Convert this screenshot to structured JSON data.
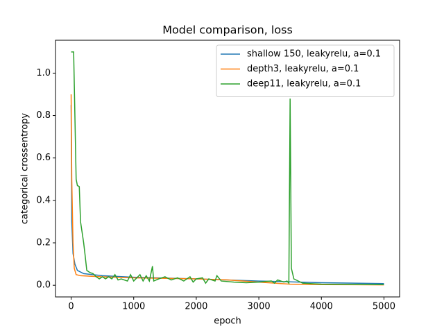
{
  "chart_data": {
    "type": "line",
    "title": "Model comparison, loss",
    "xlabel": "epoch",
    "ylabel": "categorical crossentropy",
    "xlim": [
      -250,
      5250
    ],
    "xticks": [
      0,
      1000,
      2000,
      3000,
      4000,
      5000
    ],
    "ylim": [
      -0.055,
      1.155
    ],
    "yticks": [
      {
        "value": 0,
        "label": "0.0"
      },
      {
        "value": 0.2,
        "label": "0.2"
      },
      {
        "value": 0.4,
        "label": "0.4"
      },
      {
        "value": 0.6,
        "label": "0.6"
      },
      {
        "value": 0.8,
        "label": "0.8"
      },
      {
        "value": 1.0,
        "label": "1.0"
      }
    ],
    "legend": "upper right",
    "grid": false,
    "series": [
      {
        "name": "shallow 150, leakyrelu, a=0.1",
        "color": "#1f77b4",
        "x": [
          0,
          10,
          30,
          60,
          100,
          200,
          500,
          1000,
          2000,
          3000,
          4000,
          5000
        ],
        "values": [
          0.85,
          0.3,
          0.15,
          0.1,
          0.07,
          0.055,
          0.045,
          0.038,
          0.03,
          0.02,
          0.012,
          0.008
        ]
      },
      {
        "name": "depth3, leakyrelu, a=0.1",
        "color": "#ff7f0e",
        "x": [
          0,
          10,
          30,
          50,
          80,
          150,
          500,
          1000,
          2000,
          2500,
          3000,
          3500,
          4000,
          5000
        ],
        "values": [
          0.9,
          0.5,
          0.2,
          0.08,
          0.05,
          0.045,
          0.04,
          0.035,
          0.03,
          0.025,
          0.015,
          0.005,
          0.003,
          0.002
        ]
      },
      {
        "name": "deep11, leakyrelu, a=0.1",
        "color": "#2ca02c",
        "x": [
          0,
          40,
          60,
          80,
          100,
          130,
          150,
          200,
          220,
          250,
          300,
          350,
          400,
          450,
          500,
          550,
          600,
          650,
          700,
          750,
          800,
          900,
          950,
          1000,
          1100,
          1150,
          1200,
          1250,
          1300,
          1320,
          1400,
          1500,
          1600,
          1700,
          1800,
          1900,
          1950,
          2000,
          2100,
          2150,
          2200,
          2300,
          2330,
          2400,
          2600,
          2800,
          3000,
          3200,
          3250,
          3300,
          3400,
          3450,
          3480,
          3500,
          3520,
          3560,
          3700,
          4000,
          5000
        ],
        "values": [
          1.1,
          1.1,
          0.8,
          0.5,
          0.47,
          0.465,
          0.3,
          0.2,
          0.15,
          0.07,
          0.06,
          0.055,
          0.04,
          0.03,
          0.04,
          0.03,
          0.04,
          0.03,
          0.05,
          0.025,
          0.03,
          0.02,
          0.05,
          0.02,
          0.05,
          0.02,
          0.045,
          0.02,
          0.09,
          0.02,
          0.03,
          0.04,
          0.025,
          0.035,
          0.02,
          0.04,
          0.015,
          0.03,
          0.035,
          0.01,
          0.03,
          0.02,
          0.045,
          0.02,
          0.015,
          0.012,
          0.015,
          0.02,
          0.01,
          0.025,
          0.015,
          0.02,
          0.01,
          0.88,
          0.08,
          0.03,
          0.01,
          0.005,
          0.003
        ]
      }
    ]
  }
}
